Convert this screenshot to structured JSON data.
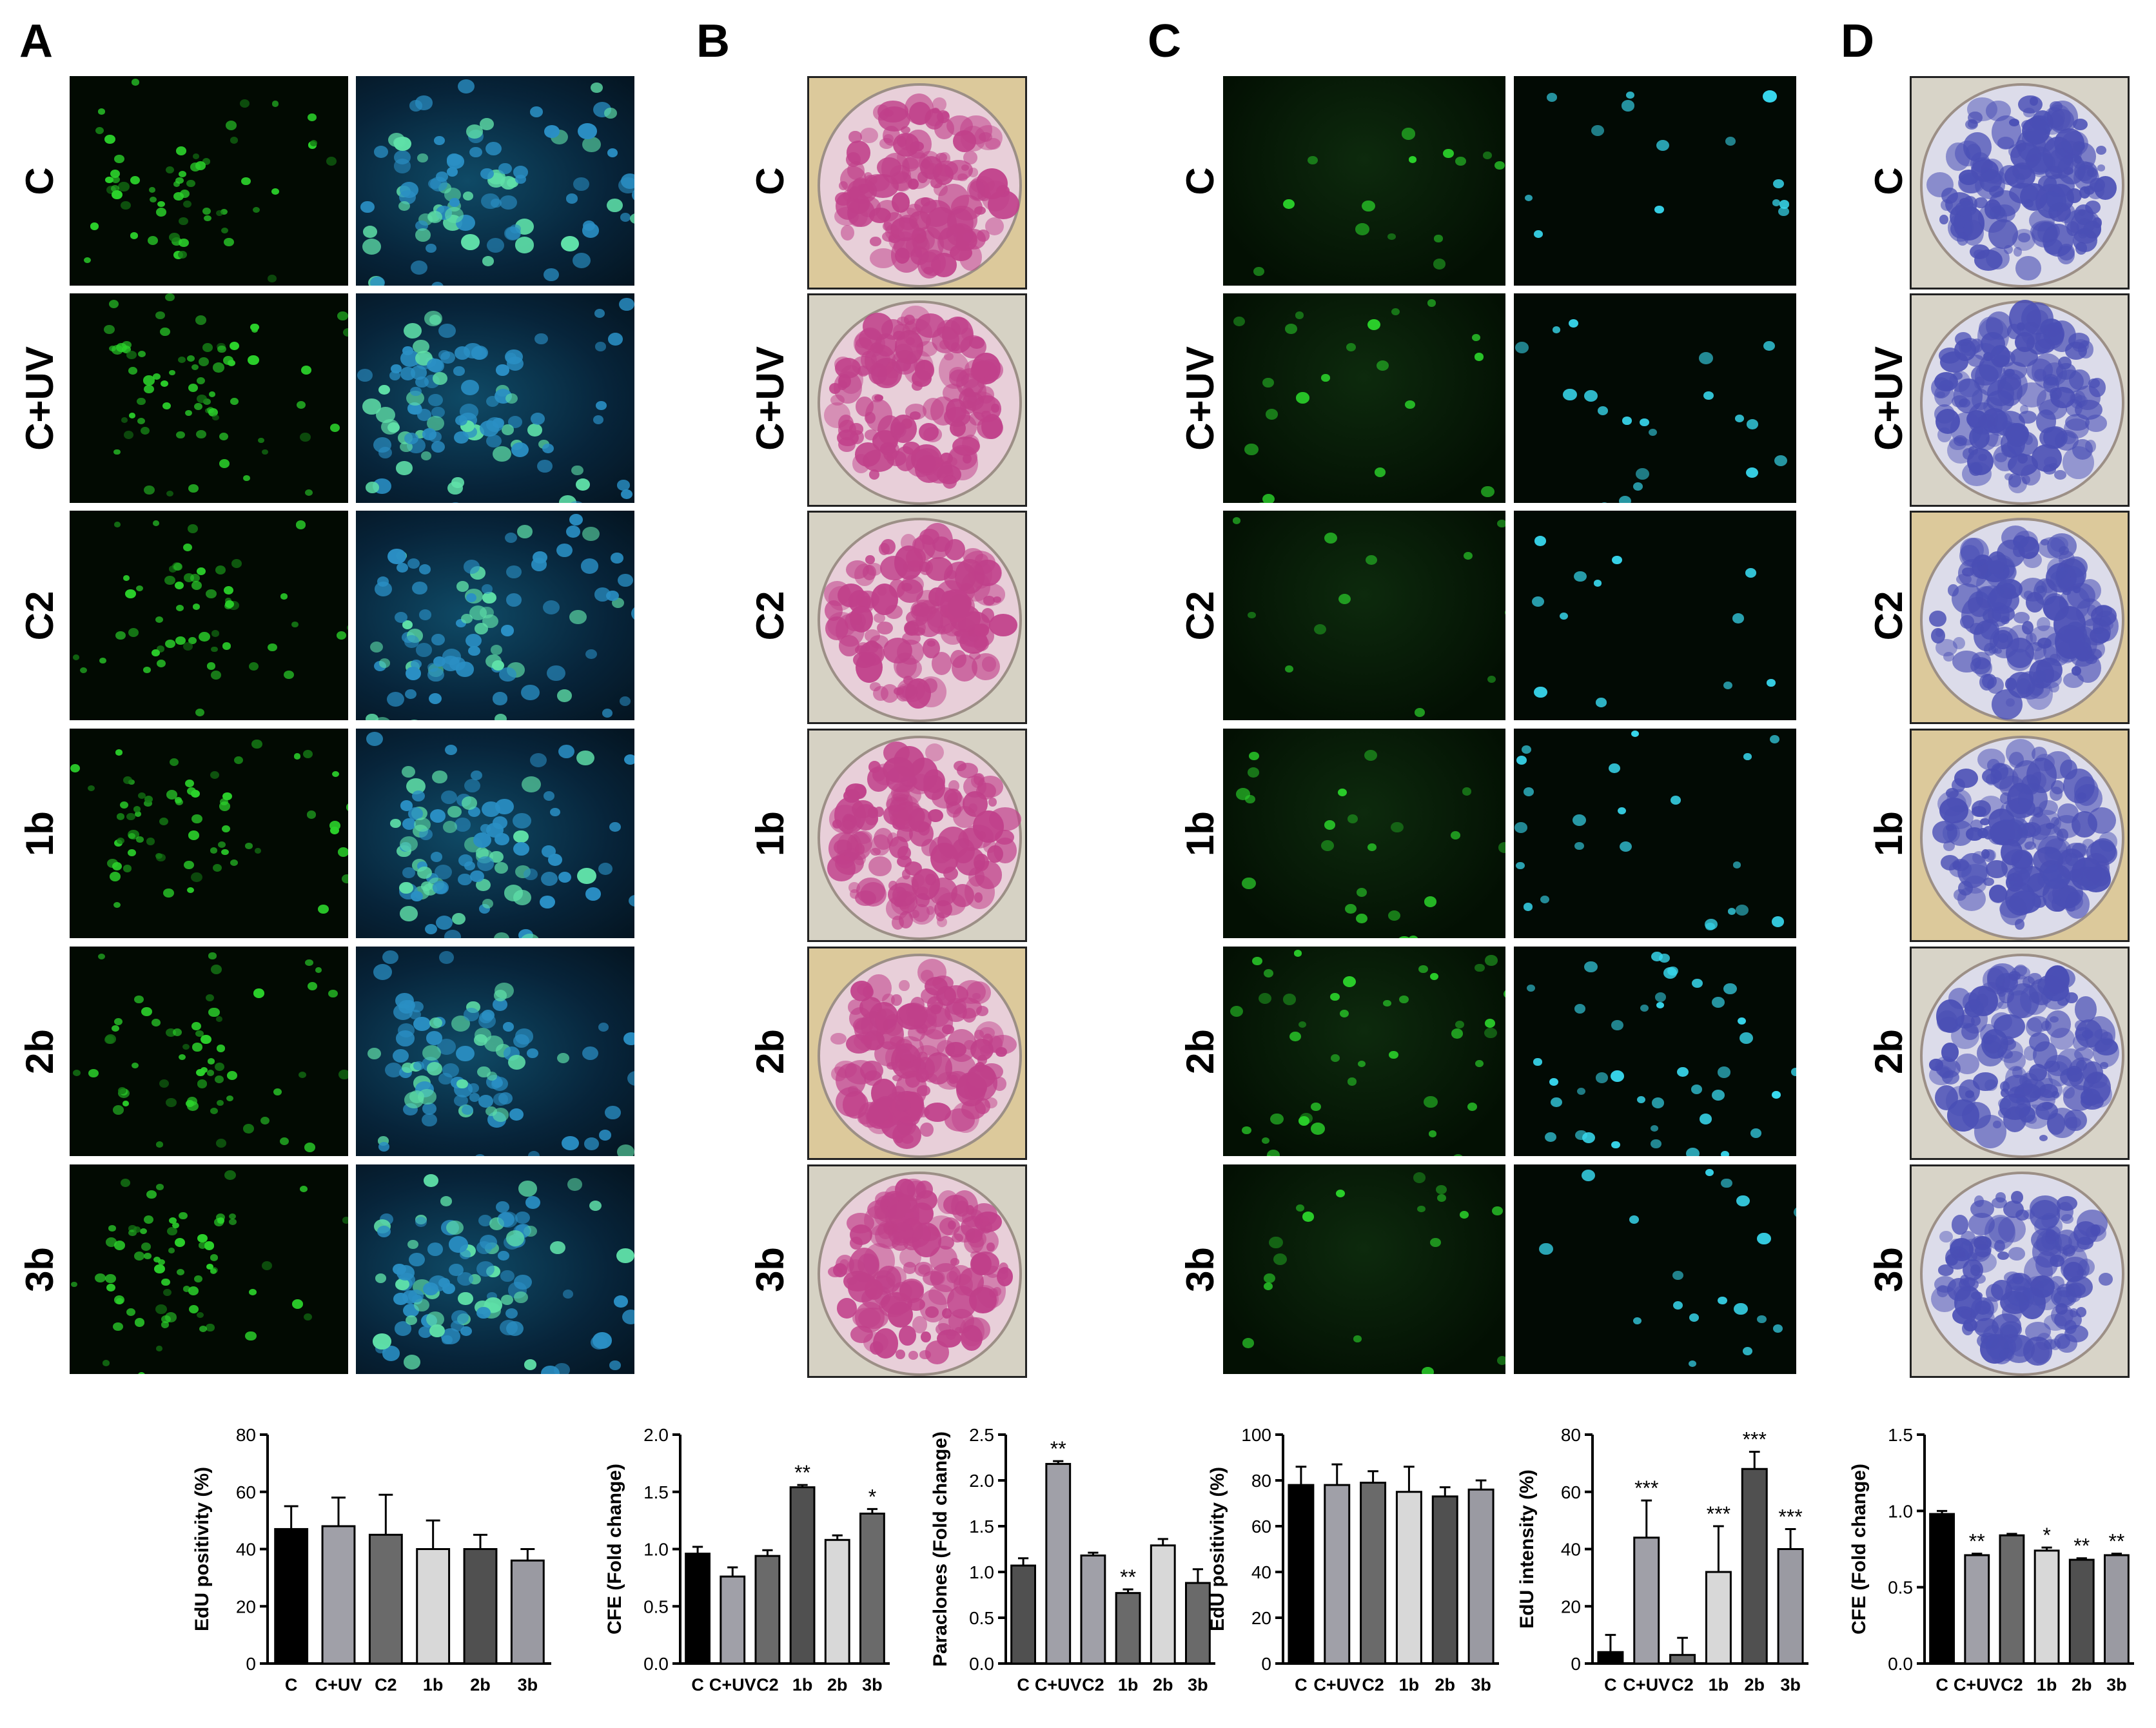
{
  "panels": {
    "A": "A",
    "B": "B",
    "C": "C",
    "D": "D"
  },
  "row_labels": [
    "C",
    "C+UV",
    "C2",
    "1b",
    "2b",
    "3b"
  ],
  "colors": {
    "edu_green": "#2bd12b",
    "dapi_blue": "#2a8fc4",
    "dapi_cyan": "#38d8ee",
    "stain_pink": "#c0408a",
    "stain_violet": "#4a4fb5",
    "dish_bg_warm": "#dcc99b"
  },
  "charts": [
    {
      "id": "A",
      "chart_data": {
        "type": "bar",
        "categories": [
          "C",
          "C+UV",
          "C2",
          "1b",
          "2b",
          "3b"
        ],
        "values": [
          47,
          48,
          45,
          40,
          40,
          36
        ],
        "errors": [
          8,
          10,
          14,
          10,
          5,
          4
        ],
        "significance": [
          "",
          "",
          "",
          "",
          "",
          ""
        ],
        "ylabel": "EdU positivity (%)",
        "ylim": [
          0,
          80
        ],
        "yticks": [
          "0",
          "20",
          "40",
          "60",
          "80"
        ],
        "bar_colors": [
          "#000000",
          "#a0a0a8",
          "#6a6a6a",
          "#d8d8d8",
          "#505050",
          "#9a9aa2"
        ]
      }
    },
    {
      "id": "B1",
      "chart_data": {
        "type": "bar",
        "categories": [
          "C",
          "C+UV",
          "C2",
          "1b",
          "2b",
          "3b"
        ],
        "values": [
          0.96,
          0.76,
          0.94,
          1.54,
          1.08,
          1.31
        ],
        "errors": [
          0.06,
          0.08,
          0.05,
          0.02,
          0.04,
          0.04
        ],
        "significance": [
          "",
          "",
          "",
          "**",
          "",
          "*"
        ],
        "ylabel": "CFE (Fold change)",
        "ylim": [
          0,
          2.0
        ],
        "yticks": [
          "0.0",
          "0.5",
          "1.0",
          "1.5",
          "2.0"
        ],
        "bar_colors": [
          "#000000",
          "#a0a0a8",
          "#6a6a6a",
          "#505050",
          "#d8d8d8",
          "#6a6a6a"
        ]
      }
    },
    {
      "id": "B2",
      "chart_data": {
        "type": "bar",
        "categories": [
          "C",
          "C+UV",
          "C2",
          "1b",
          "2b",
          "3b"
        ],
        "values": [
          1.07,
          2.18,
          1.18,
          0.77,
          1.29,
          0.88
        ],
        "errors": [
          0.08,
          0.03,
          0.03,
          0.04,
          0.07,
          0.15
        ],
        "significance": [
          "",
          "**",
          "",
          "**",
          "",
          ""
        ],
        "ylabel": "Paraclones (Fold change)",
        "ylim": [
          0,
          2.5
        ],
        "yticks": [
          "0.0",
          "0.5",
          "1.0",
          "1.5",
          "2.0",
          "2.5"
        ],
        "bar_colors": [
          "#505050",
          "#a0a0a8",
          "#a0a0a8",
          "#6a6a6a",
          "#d8d8d8",
          "#6a6a6a"
        ]
      }
    },
    {
      "id": "C1",
      "chart_data": {
        "type": "bar",
        "categories": [
          "C",
          "C+UV",
          "C2",
          "1b",
          "2b",
          "3b"
        ],
        "values": [
          78,
          78,
          79,
          75,
          73,
          76
        ],
        "errors": [
          8,
          9,
          5,
          11,
          4,
          4
        ],
        "significance": [
          "",
          "",
          "",
          "",
          "",
          ""
        ],
        "ylabel": "EdU positivity (%)",
        "ylim": [
          0,
          100
        ],
        "yticks": [
          "0",
          "20",
          "40",
          "60",
          "80",
          "100"
        ],
        "bar_colors": [
          "#000000",
          "#a0a0a8",
          "#6a6a6a",
          "#d8d8d8",
          "#505050",
          "#9a9aa2"
        ]
      }
    },
    {
      "id": "C2",
      "chart_data": {
        "type": "bar",
        "categories": [
          "C",
          "C+UV",
          "C2",
          "1b",
          "2b",
          "3b"
        ],
        "values": [
          4,
          44,
          3,
          32,
          68,
          40
        ],
        "errors": [
          6,
          13,
          6,
          16,
          6,
          7
        ],
        "significance": [
          "",
          "***",
          "",
          "***",
          "***",
          "***"
        ],
        "ylabel": "EdU intensity (%)",
        "ylim": [
          0,
          80
        ],
        "yticks": [
          "0",
          "20",
          "40",
          "60",
          "80"
        ],
        "bar_colors": [
          "#000000",
          "#a0a0a8",
          "#6a6a6a",
          "#d8d8d8",
          "#505050",
          "#9a9aa2"
        ]
      }
    },
    {
      "id": "D",
      "chart_data": {
        "type": "bar",
        "categories": [
          "C",
          "C+UV",
          "C2",
          "1b",
          "2b",
          "3b"
        ],
        "values": [
          0.98,
          0.71,
          0.84,
          0.74,
          0.68,
          0.71
        ],
        "errors": [
          0.02,
          0.01,
          0.01,
          0.02,
          0.01,
          0.01
        ],
        "significance": [
          "",
          "**",
          "",
          "*",
          "**",
          "**"
        ],
        "ylabel": "CFE (Fold change)",
        "ylim": [
          0,
          1.5
        ],
        "yticks": [
          "0.0",
          "0.5",
          "1.0",
          "1.5"
        ],
        "bar_colors": [
          "#000000",
          "#a0a0a8",
          "#6a6a6a",
          "#d8d8d8",
          "#505050",
          "#9a9aa2"
        ]
      }
    }
  ]
}
